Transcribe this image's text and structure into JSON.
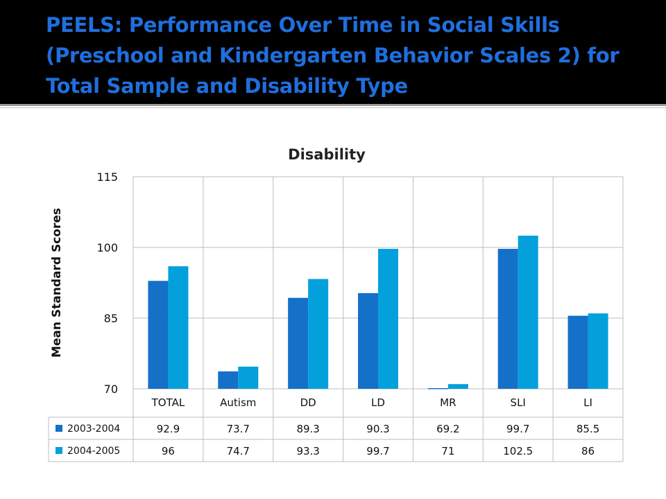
{
  "slide": {
    "title_lines": [
      "PEELS:  Performance Over Time in Social Skills",
      "(Preschool and Kindergarten Behavior Scales 2) for",
      "Total Sample and Disability Type"
    ]
  },
  "chart_data": {
    "type": "bar",
    "title": "Disability",
    "ylabel": "Mean Standard Scores",
    "xlabel": "",
    "ylim": [
      70,
      115
    ],
    "yticks": [
      70,
      85,
      100,
      115
    ],
    "grid": true,
    "legend_placement": "data-table",
    "categories": [
      "TOTAL",
      "Autism",
      "DD",
      "LD",
      "MR",
      "SLI",
      "LI"
    ],
    "series": [
      {
        "name": "2003-2004",
        "color": "#1570c8",
        "values": [
          92.9,
          73.7,
          89.3,
          90.3,
          69.2,
          99.7,
          85.5
        ]
      },
      {
        "name": "2004-2005",
        "color": "#04a0dc",
        "values": [
          96,
          74.7,
          93.3,
          99.7,
          71,
          102.5,
          86
        ]
      }
    ]
  }
}
